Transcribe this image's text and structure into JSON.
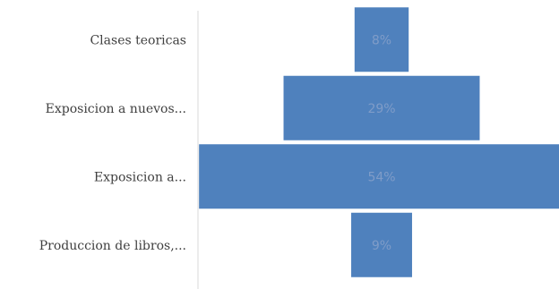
{
  "chart_data": {
    "type": "bar",
    "orientation": "horizontal-centered",
    "categories": [
      "Clases teoricas",
      "Exposicion a nuevos...",
      "Exposicion a...",
      "Produccion de libros,..."
    ],
    "values": [
      8,
      29,
      54,
      9
    ],
    "value_labels": [
      "8%",
      "29%",
      "54%",
      "9%"
    ],
    "bar_color": "#4f81bd",
    "axis_color": "#d9d9d9"
  }
}
